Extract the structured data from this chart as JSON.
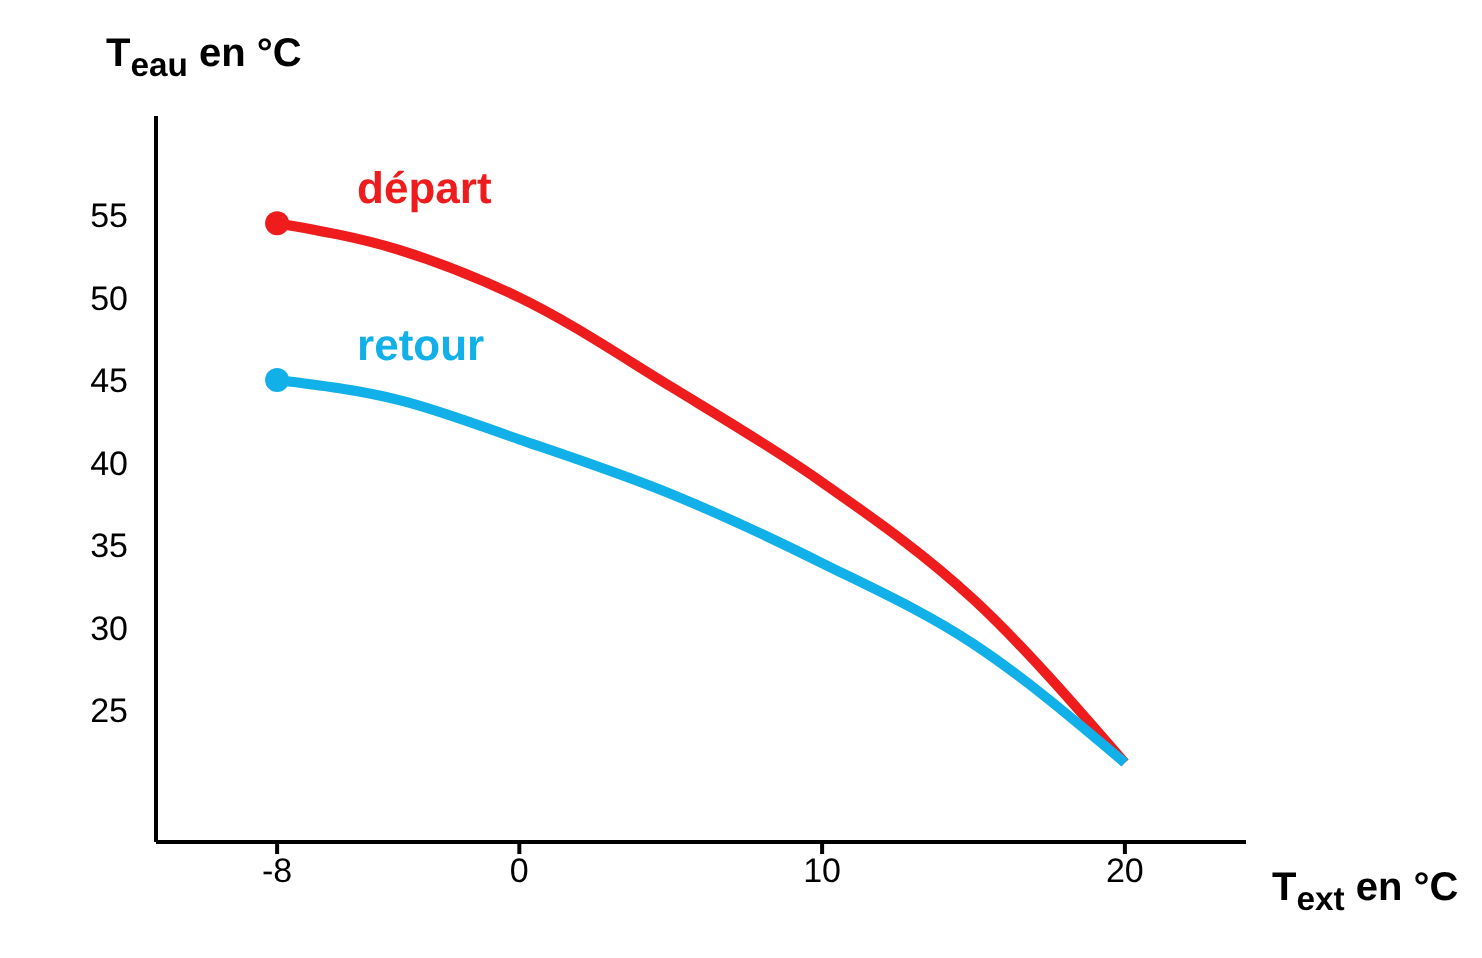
{
  "chart_data": {
    "type": "line",
    "xlabel": "T$_{ext}$ en °C",
    "ylabel": "T$_{eau}$ en °C",
    "x": [
      -8,
      -4,
      0,
      5,
      10,
      15,
      20
    ],
    "series": [
      {
        "name": "départ",
        "color": "#ee1c1c",
        "values": [
          54.5,
          52.9,
          50,
          44.6,
          38.8,
          31.7,
          21.8
        ]
      },
      {
        "name": "retour",
        "color": "#12b0e8",
        "values": [
          45,
          43.8,
          41.4,
          38.1,
          33.9,
          29,
          21.8
        ]
      }
    ],
    "xlim": [
      -12,
      24
    ],
    "xticks": [
      -8,
      0,
      10,
      20
    ],
    "ylim": [
      17,
      61
    ],
    "yticks": [
      25,
      30,
      35,
      40,
      45,
      50,
      55
    ],
    "grid": false,
    "line_style": "solid"
  }
}
